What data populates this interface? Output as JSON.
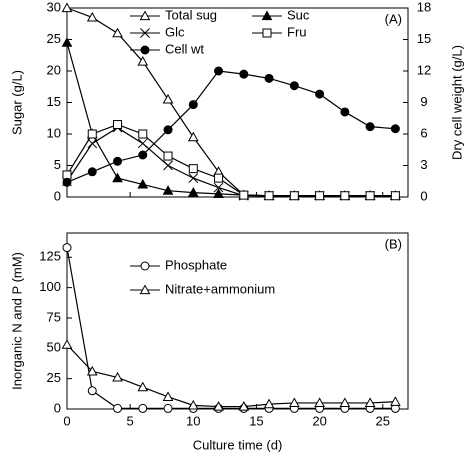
{
  "chart_data": [
    {
      "type": "line",
      "annotation": "(A)",
      "ylabel": "Sugar (g/L)",
      "y2label": "Dry cell weight (g/L)",
      "x": [
        0,
        2,
        4,
        6,
        8,
        10,
        12,
        14,
        16,
        18,
        20,
        22,
        24,
        26
      ],
      "xlim": [
        0,
        27
      ],
      "xticks": [
        0,
        5,
        10,
        15,
        20,
        25
      ],
      "show_xtick_labels": false,
      "ylim": [
        0,
        30
      ],
      "yticks": [
        0,
        5,
        10,
        15,
        20,
        25,
        30
      ],
      "y2lim": [
        0,
        18
      ],
      "y2ticks": [
        0,
        3,
        6,
        9,
        12,
        15,
        18
      ],
      "series": [
        {
          "name": "Total sug",
          "color": "#000000",
          "marker": "triangle-open",
          "values": [
            30,
            28.5,
            26,
            21.5,
            15.5,
            9.5,
            4,
            0.3,
            0.2,
            0.2,
            0.2,
            0.2,
            0.2,
            0.2
          ]
        },
        {
          "name": "Suc",
          "color": "#000000",
          "marker": "triangle-filled",
          "values": [
            24.5,
            10,
            3,
            2,
            1,
            0.7,
            0.5,
            0.3,
            0.2,
            0.2,
            0.2,
            0.2,
            0.2,
            0.2
          ]
        },
        {
          "name": "Glc",
          "color": "#000000",
          "marker": "cross",
          "values": [
            2.5,
            8.5,
            11,
            8.5,
            5,
            3,
            1.5,
            0.2,
            0.2,
            0.2,
            0.2,
            0.2,
            0.2,
            0.2
          ]
        },
        {
          "name": "Fru",
          "color": "#000000",
          "marker": "square-open",
          "values": [
            3.5,
            10,
            11.5,
            10,
            6.5,
            4.5,
            3,
            0.3,
            0.2,
            0.2,
            0.2,
            0.2,
            0.2,
            0.2
          ]
        },
        {
          "name": "Cell wt",
          "color": "#000000",
          "marker": "circle-filled",
          "axis": "y2",
          "values": [
            1.4,
            2.4,
            3.4,
            4,
            6.4,
            8.8,
            12,
            11.7,
            11.3,
            10.6,
            9.8,
            8.1,
            6.7,
            6.5
          ]
        }
      ]
    },
    {
      "type": "line",
      "annotation": "(B)",
      "ylabel": "Inorganic N and P (mM)",
      "xlabel": "Culture time (d)",
      "x": [
        0,
        2,
        4,
        6,
        8,
        10,
        12,
        14,
        16,
        18,
        20,
        22,
        24,
        26
      ],
      "xlim": [
        0,
        27
      ],
      "xticks": [
        0,
        5,
        10,
        15,
        20,
        25
      ],
      "show_xtick_labels": true,
      "ylim": [
        0,
        145
      ],
      "yticks": [
        0,
        25,
        50,
        75,
        100,
        125
      ],
      "series": [
        {
          "name": "Phosphate",
          "color": "#000000",
          "marker": "circle-open",
          "values": [
            133,
            15,
            0.5,
            0.5,
            0.5,
            0.5,
            0.5,
            0.5,
            0.5,
            0.5,
            0.5,
            0.5,
            0.5,
            0.5
          ]
        },
        {
          "name": "Nitrate+ammonium",
          "color": "#000000",
          "marker": "triangle-open",
          "values": [
            53,
            31,
            26,
            18,
            10,
            3,
            2,
            2,
            4,
            5,
            5,
            5,
            5,
            6
          ]
        }
      ]
    }
  ]
}
